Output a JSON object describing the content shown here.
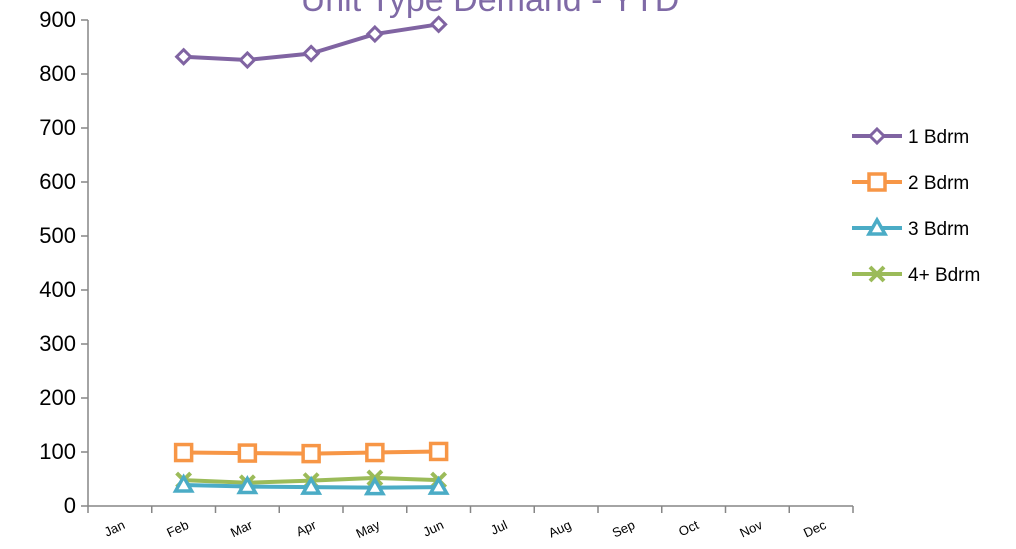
{
  "chart_data": {
    "type": "line",
    "title": "Unit Type Demand - YTD",
    "categories": [
      "Jan",
      "Feb",
      "Mar",
      "Apr",
      "May",
      "Jun",
      "Jul",
      "Aug",
      "Sep",
      "Oct",
      "Nov",
      "Dec"
    ],
    "ylim": [
      0,
      900
    ],
    "yticks": [
      0,
      100,
      200,
      300,
      400,
      500,
      600,
      700,
      800,
      900
    ],
    "grid": false,
    "legend_position": "right",
    "series": [
      {
        "name": "1 Bdrm",
        "color": "#8064a2",
        "marker": "diamond",
        "values": [
          null,
          832,
          826,
          838,
          874,
          892,
          null,
          null,
          null,
          null,
          null,
          null
        ]
      },
      {
        "name": "2 Bdrm",
        "color": "#f79646",
        "marker": "square",
        "values": [
          null,
          99,
          98,
          97,
          99,
          101,
          null,
          null,
          null,
          null,
          null,
          null
        ]
      },
      {
        "name": "3 Bdrm",
        "color": "#4bacc6",
        "marker": "triangle",
        "values": [
          null,
          39,
          36,
          35,
          34,
          35,
          null,
          null,
          null,
          null,
          null,
          null
        ]
      },
      {
        "name": "4+ Bdrm",
        "color": "#9bbb59",
        "marker": "x",
        "values": [
          null,
          48,
          43,
          47,
          52,
          48,
          null,
          null,
          null,
          null,
          null,
          null
        ]
      }
    ]
  }
}
